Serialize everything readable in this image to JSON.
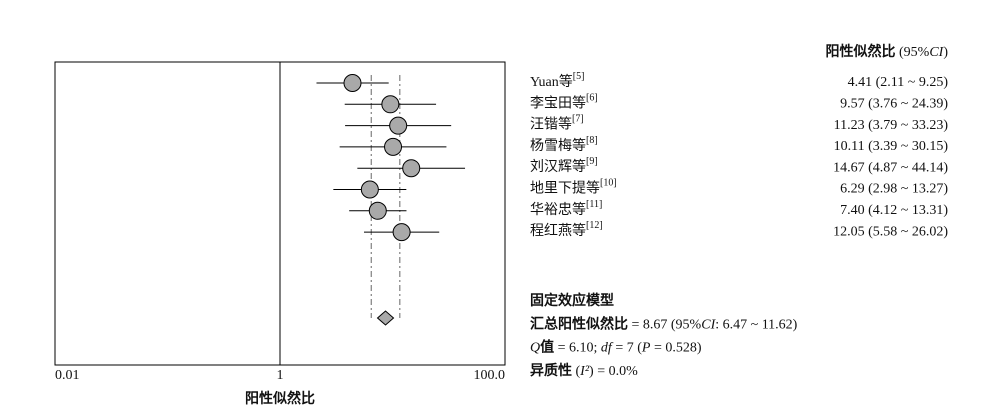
{
  "chart_data": {
    "type": "forest",
    "log": true,
    "xlim": [
      0.01,
      100
    ],
    "xticks": [
      0.01,
      1,
      {
        "value": 100,
        "label": "100.0"
      }
    ],
    "xlabel": "阳性似然比",
    "header": [
      {
        "text": "阳性似然比",
        "bold": true
      },
      {
        "text": " (95%"
      },
      {
        "text": "CI",
        "italic": true
      },
      {
        "text": ")"
      }
    ],
    "studies": [
      {
        "name": "Yuan等",
        "ref": "[5]",
        "estimate": 4.41,
        "lower": 2.11,
        "upper": 9.25,
        "value_label": "4.41 (2.11 ~ 9.25)"
      },
      {
        "name": "李宝田等",
        "ref": "[6]",
        "estimate": 9.57,
        "lower": 3.76,
        "upper": 24.39,
        "value_label": "9.57 (3.76 ~ 24.39)"
      },
      {
        "name": "汪锴等",
        "ref": "[7]",
        "estimate": 11.23,
        "lower": 3.79,
        "upper": 33.23,
        "value_label": "11.23 (3.79 ~ 33.23)"
      },
      {
        "name": "杨雪梅等",
        "ref": "[8]",
        "estimate": 10.11,
        "lower": 3.39,
        "upper": 30.15,
        "value_label": "10.11 (3.39 ~ 30.15)"
      },
      {
        "name": "刘汉辉等",
        "ref": "[9]",
        "estimate": 14.67,
        "lower": 4.87,
        "upper": 44.14,
        "value_label": "14.67 (4.87 ~ 44.14)"
      },
      {
        "name": "地里下提等",
        "ref": "[10]",
        "estimate": 6.29,
        "lower": 2.98,
        "upper": 13.27,
        "value_label": "6.29 (2.98 ~ 13.27)"
      },
      {
        "name": "华裕忠等",
        "ref": "[11]",
        "estimate": 7.4,
        "lower": 4.12,
        "upper": 13.31,
        "value_label": "7.40 (4.12 ~ 13.31)"
      },
      {
        "name": "程红燕等",
        "ref": "[12]",
        "estimate": 12.05,
        "lower": 5.58,
        "upper": 26.02,
        "value_label": "12.05 (5.58 ~ 26.02)"
      }
    ],
    "summary": {
      "estimate": 8.67,
      "lower": 6.47,
      "upper": 11.62
    },
    "summary_text": [
      [
        {
          "text": "固定效应模型",
          "bold": true
        }
      ],
      [
        {
          "text": "汇总阳性似然比",
          "bold": true
        },
        {
          "text": " = 8.67 (95%"
        },
        {
          "text": "CI",
          "italic": true
        },
        {
          "text": ": 6.47 ~ 11.62)"
        }
      ],
      [
        {
          "text": "Q",
          "italic": true
        },
        {
          "text": "值",
          "bold": true
        },
        {
          "text": " = 6.10; "
        },
        {
          "text": "df",
          "italic": true
        },
        {
          "text": " = 7 ("
        },
        {
          "text": "P",
          "italic": true
        },
        {
          "text": " = 0.528)"
        }
      ],
      [
        {
          "text": "异质性",
          "bold": true
        },
        {
          "text": " ("
        },
        {
          "text": "I²",
          "italic": true
        },
        {
          "text": ") = 0.0%"
        }
      ]
    ]
  }
}
